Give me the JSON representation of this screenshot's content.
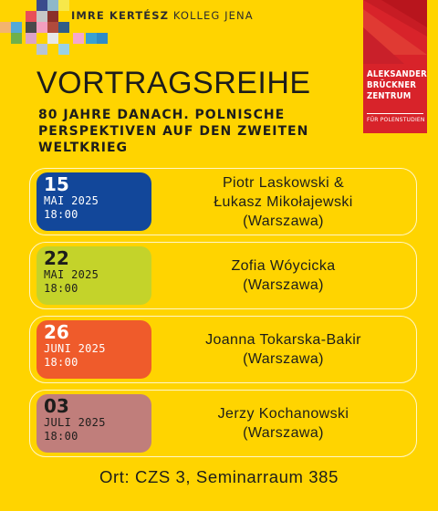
{
  "header": {
    "kolleg_name_bold": "IMRE KERTÉSZ",
    "kolleg_name_rest": " KOLLEG JENA",
    "zentrum_lines": [
      "ALEKSANDER",
      "BRÜCKNER",
      "ZENTRUM"
    ],
    "zentrum_sub": "FÜR POLENSTUDIEN"
  },
  "title": "VORTRAGSREIHE",
  "subtitle": "80 JAHRE DANACH. POLNISCHE PERSPEKTIVEN AUF DEN ZWEITEN WELTKRIEG",
  "events": [
    {
      "day": "15",
      "month": "MAI 2025",
      "time": "18:00",
      "speaker_lines": [
        "Piotr Laskowski &",
        "Łukasz Mikołajewski",
        "(Warszawa)"
      ],
      "color": "#12479a",
      "text_color": "#ffffff"
    },
    {
      "day": "22",
      "month": "MAI 2025",
      "time": "18:00",
      "speaker_lines": [
        "Zofia Wóycicka",
        "(Warszawa)"
      ],
      "color": "#c4d32a",
      "text_color": "#1d1d1b"
    },
    {
      "day": "26",
      "month": "JUNI 2025",
      "time": "18:00",
      "speaker_lines": [
        "Joanna Tokarska-Bakir",
        "(Warszawa)"
      ],
      "color": "#ef5b2b",
      "text_color": "#ffffff"
    },
    {
      "day": "03",
      "month": "JULI 2025",
      "time": "18:00",
      "speaker_lines": [
        "Jerzy Kochanowski",
        "(Warszawa)"
      ],
      "color": "#c07e7b",
      "text_color": "#1d1d1b"
    }
  ],
  "location": "Ort: CZS 3, Seminarraum 385",
  "colors": {
    "background": "#ffd400",
    "zentrum_red": "#d8232a"
  }
}
